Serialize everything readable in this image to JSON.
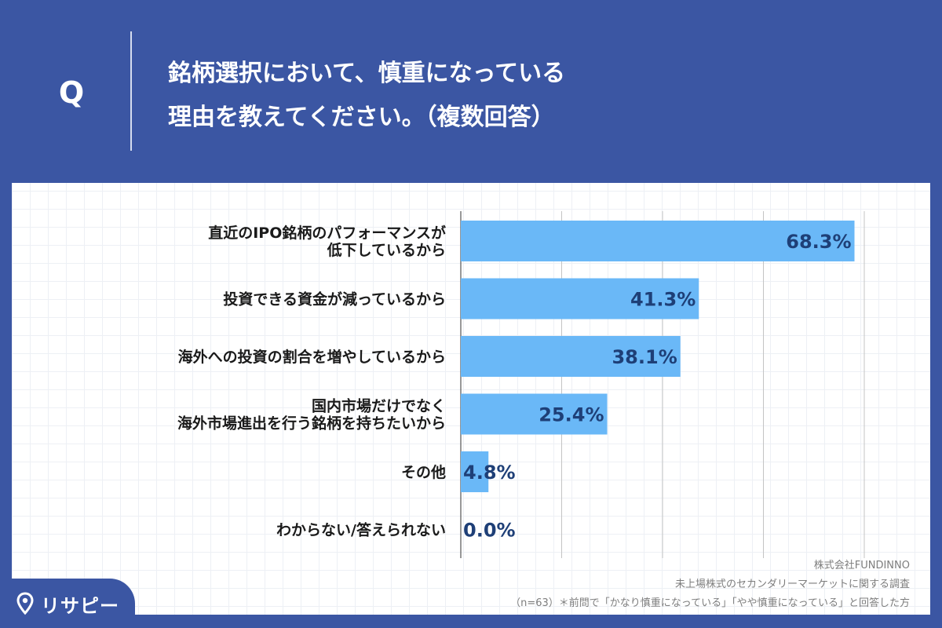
{
  "header": {
    "q_label": "Q",
    "question_line1": "銘柄選択において、慎重になっている",
    "question_line2": "理由を教えてください。（複数回答）"
  },
  "colors": {
    "background": "#3b56a3",
    "bar": "#6ab8f7",
    "bar_label": "#1e3f77",
    "category_label": "#1a1a1a"
  },
  "chart_data": {
    "type": "bar",
    "orientation": "horizontal",
    "categories": [
      [
        "直近のIPO銘柄のパフォーマンスが",
        "低下しているから"
      ],
      [
        "投資できる資金が減っているから"
      ],
      [
        "海外への投資の割合を増やしているから"
      ],
      [
        "国内市場だけでなく",
        "海外市場進出を行う銘柄を持ちたいから"
      ],
      [
        "その他"
      ],
      [
        "わからない/答えられない"
      ]
    ],
    "values": [
      68.3,
      41.3,
      38.1,
      25.4,
      4.8,
      0.0
    ],
    "value_labels": [
      "68.3%",
      "41.3%",
      "38.1%",
      "25.4%",
      "4.8%",
      "0.0%"
    ],
    "xlim": [
      0,
      70
    ],
    "gridlines_at": [
      0,
      17.5,
      35,
      52.5,
      70
    ],
    "grid": true,
    "legend": false
  },
  "footer": {
    "company": "株式会社FUNDINNO",
    "survey": "未上場株式のセカンダリーマーケットに関する調査",
    "note": "（n=63）＊前問で「かなり慎重になっている」「やや慎重になっている」と回答した方"
  },
  "brand": {
    "logo_icon": "map-pin-icon",
    "logo_text": "リサピー"
  }
}
